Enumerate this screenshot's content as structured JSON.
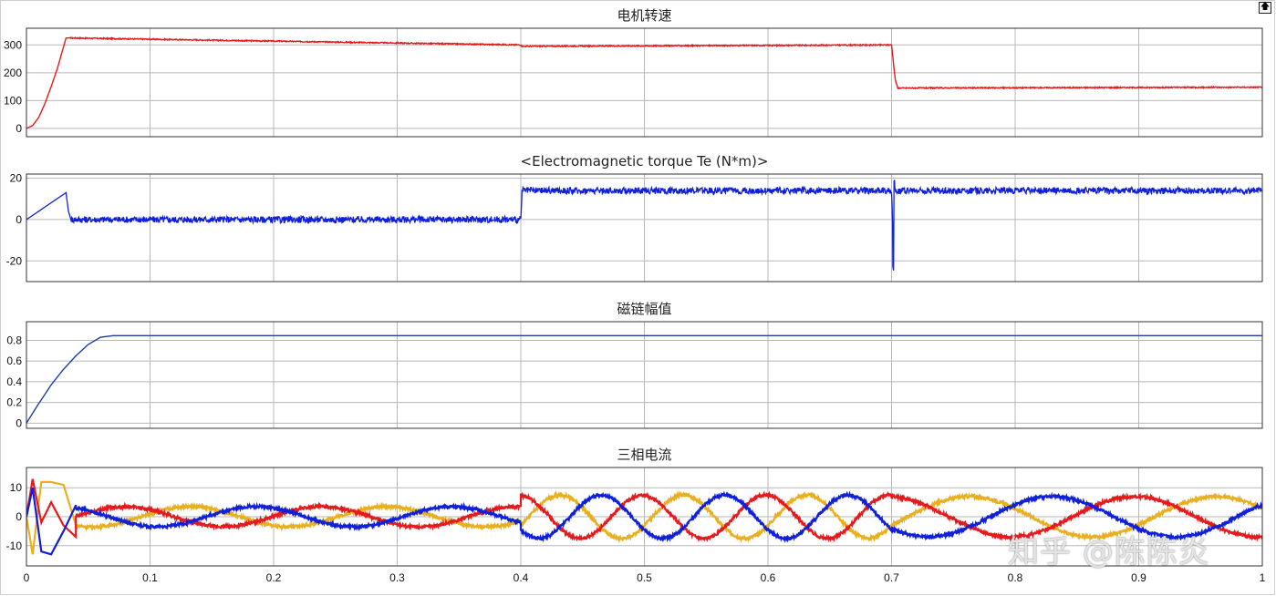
{
  "window": {
    "restore_icon": "restore-up-arrow-icon"
  },
  "watermark": "知乎 @陈陈炎",
  "colors": {
    "red": "#e41a1c",
    "blue": "#1020d8",
    "yellow": "#e8b020",
    "navy": "#1f3fa0",
    "grid": "#b8b8b8"
  },
  "chart_data": [
    {
      "type": "line",
      "title": "电机转速",
      "xlim": [
        0,
        1
      ],
      "ylim": [
        -30,
        360
      ],
      "yticks": [
        0,
        100,
        200,
        300
      ],
      "xticks": [
        0,
        0.1,
        0.2,
        0.3,
        0.4,
        0.5,
        0.6,
        0.7,
        0.8,
        0.9,
        1
      ],
      "show_x_tick_labels": false,
      "grid": true,
      "series": [
        {
          "color": "#e41a1c",
          "x": [
            0,
            0.005,
            0.01,
            0.015,
            0.02,
            0.025,
            0.032,
            0.035,
            0.4,
            0.401,
            0.7,
            0.703,
            0.705,
            1
          ],
          "y": [
            0,
            10,
            40,
            90,
            150,
            215,
            325,
            325,
            300,
            295,
            300,
            175,
            145,
            148
          ]
        }
      ]
    },
    {
      "type": "line",
      "title": "<Electromagnetic torque Te (N*m)>",
      "xlim": [
        0,
        1
      ],
      "ylim": [
        -30,
        22
      ],
      "yticks": [
        -20,
        0,
        20
      ],
      "xticks": [
        0,
        0.1,
        0.2,
        0.3,
        0.4,
        0.5,
        0.6,
        0.7,
        0.8,
        0.9,
        1
      ],
      "show_x_tick_labels": false,
      "grid": true,
      "series": [
        {
          "color": "#1020d8",
          "x": [
            0,
            0.032,
            0.034,
            0.036,
            0.4,
            0.401,
            0.7,
            0.7008,
            0.701,
            0.7016,
            0.702,
            0.703,
            1
          ],
          "y": [
            0,
            13,
            4,
            0,
            0,
            14,
            14,
            0,
            -24,
            -24,
            20,
            14,
            14
          ]
        }
      ]
    },
    {
      "type": "line",
      "title": "磁链幅值",
      "xlim": [
        0,
        1
      ],
      "ylim": [
        -0.05,
        0.98
      ],
      "yticks": [
        0,
        0.2,
        0.4,
        0.6,
        0.8
      ],
      "xticks": [
        0,
        0.1,
        0.2,
        0.3,
        0.4,
        0.5,
        0.6,
        0.7,
        0.8,
        0.9,
        1
      ],
      "show_x_tick_labels": false,
      "grid": true,
      "series": [
        {
          "color": "#1f3fa0",
          "x": [
            0,
            0.01,
            0.02,
            0.03,
            0.04,
            0.05,
            0.06,
            0.07,
            1
          ],
          "y": [
            0,
            0.19,
            0.37,
            0.52,
            0.65,
            0.76,
            0.83,
            0.845,
            0.845
          ]
        }
      ]
    },
    {
      "type": "line",
      "title": "三相电流",
      "xlim": [
        0,
        1
      ],
      "ylim": [
        -17,
        17
      ],
      "yticks": [
        -10,
        0,
        10
      ],
      "xticks": [
        0,
        0.1,
        0.2,
        0.3,
        0.4,
        0.5,
        0.6,
        0.7,
        0.8,
        0.9,
        1
      ],
      "xticklabels": [
        "0",
        "0.1",
        "0.2",
        "0.3",
        "0.4",
        "0.5",
        "0.6",
        "0.7",
        "0.8",
        "0.9",
        "1"
      ],
      "show_x_tick_labels": true,
      "grid": true,
      "series": [
        {
          "color": "#e8b020",
          "x": [],
          "y": []
        },
        {
          "color": "#e41a1c",
          "x": [],
          "y": []
        },
        {
          "color": "#1020d8",
          "x": [],
          "y": []
        }
      ]
    }
  ]
}
